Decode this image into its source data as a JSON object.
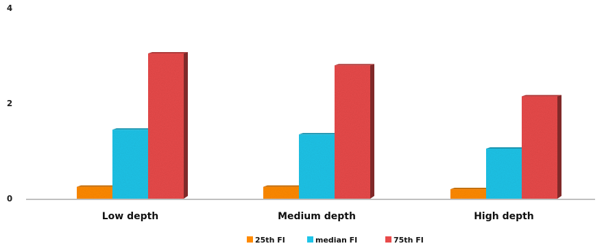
{
  "chart_data": {
    "type": "bar",
    "categories": [
      "Low depth",
      "Medium depth",
      "High depth"
    ],
    "series": [
      {
        "name": "25th FI",
        "values": [
          0.25,
          0.25,
          0.2
        ],
        "color": "#ff8a00"
      },
      {
        "name": "median FI",
        "values": [
          1.45,
          1.35,
          1.05
        ],
        "color": "#1ec4e8"
      },
      {
        "name": "75th FI",
        "values": [
          3.05,
          2.8,
          2.15
        ],
        "color": "#e84a4a"
      }
    ],
    "yticks": [
      "0",
      "2",
      "4"
    ],
    "ylim": [
      0,
      4
    ],
    "title": "",
    "xlabel": "",
    "ylabel": "",
    "legend": "bottom",
    "grid": false
  }
}
